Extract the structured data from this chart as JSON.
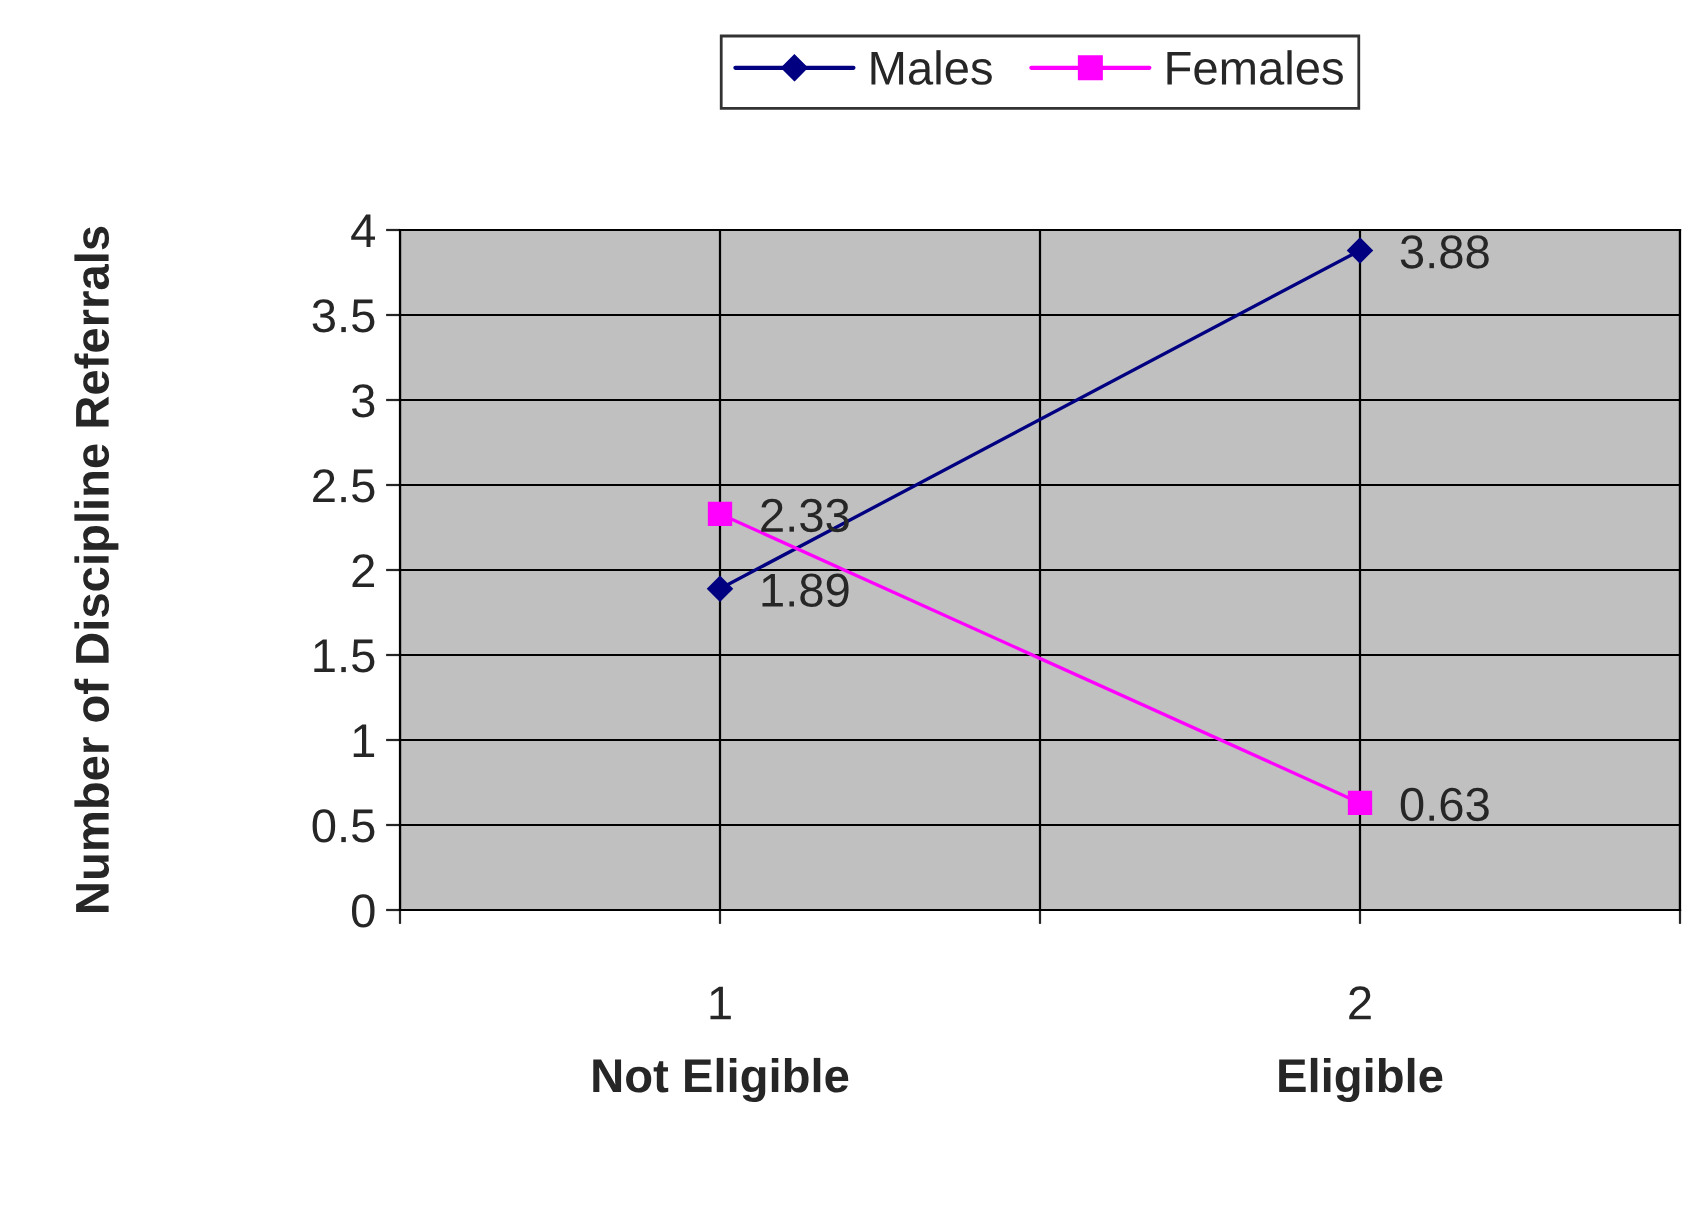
{
  "chart_data": {
    "type": "line",
    "ylabel": "Number of Discipline Referrals",
    "x": [
      1,
      2
    ],
    "series": [
      {
        "name": "Males",
        "color": "#000080",
        "values": [
          1.89,
          3.88
        ],
        "marker": "diamond",
        "value_labels": [
          "1.89",
          "3.88"
        ]
      },
      {
        "name": "Females",
        "color": "#ff00ff",
        "values": [
          2.33,
          0.63
        ],
        "marker": "square",
        "value_labels": [
          "2.33",
          "0.63"
        ]
      }
    ],
    "xlim": [
      0.5,
      2.5
    ],
    "xticks": [
      {
        "value": 0.5,
        "label": null
      },
      1,
      {
        "value": 1.5,
        "label": null
      },
      2,
      {
        "value": 2.5,
        "label": null
      }
    ],
    "ylim": [
      0,
      4
    ],
    "yticks": [
      0,
      0.5,
      1,
      1.5,
      2,
      2.5,
      3,
      3.5,
      4
    ],
    "annotations": [
      "Not Eligible",
      "Eligible"
    ],
    "grid": true,
    "legend": "top",
    "line_style": "solid"
  }
}
